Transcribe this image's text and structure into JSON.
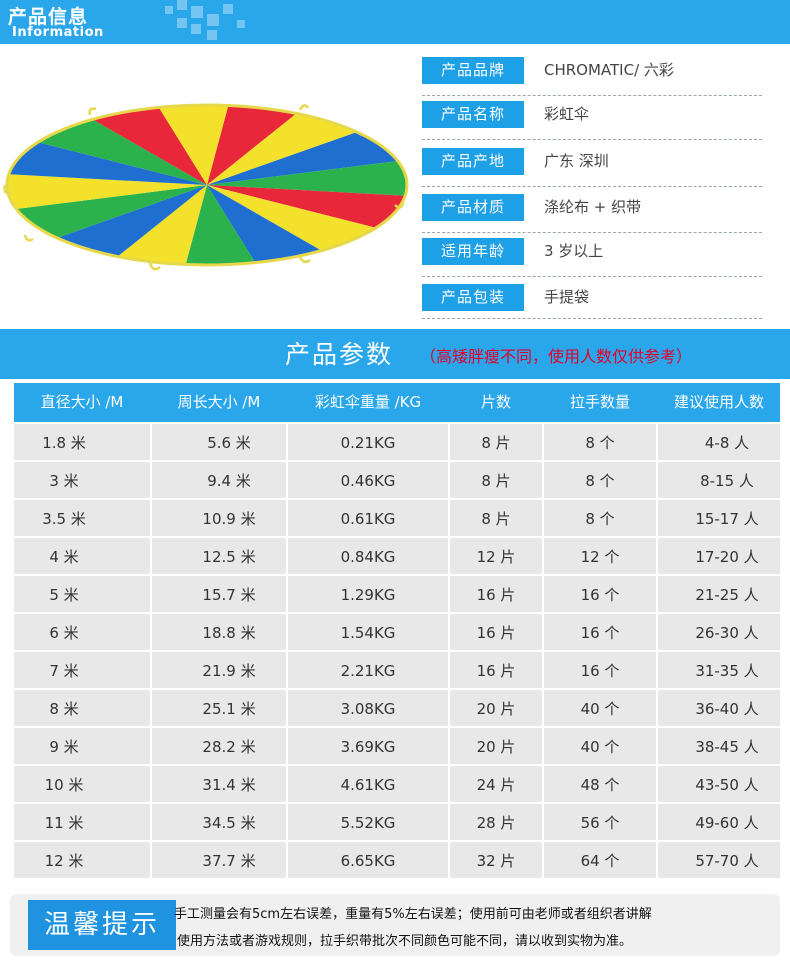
{
  "header": {
    "title": "产品信息",
    "subtitle": "Information",
    "bar_color": "#2aa6ea"
  },
  "image": {
    "alt": "rainbow parachute",
    "colors": [
      "#e8283a",
      "#1f6fd0",
      "#f3e12c",
      "#2bb24c",
      "#1aa8e8"
    ]
  },
  "info": [
    {
      "label": "产品品牌",
      "value": "CHROMATIC/ 六彩"
    },
    {
      "label": "产品名称",
      "value": "彩虹伞"
    },
    {
      "label": "产品产地",
      "value": "广东  深圳"
    },
    {
      "label": "产品材质",
      "value": "涤纶布 + 织带"
    },
    {
      "label": "适用年龄",
      "value": "3 岁以上"
    },
    {
      "label": "产品包装",
      "value": "手提袋"
    }
  ],
  "params": {
    "heading": "产品参数",
    "note": "（高矮胖瘦不同，使用人数仅供参考）",
    "columns": [
      "直径大小 /M",
      "周长大小 /M",
      "彩虹伞重量 /KG",
      "片数",
      "拉手数量",
      "建议使用人数"
    ],
    "rows": [
      [
        "1.8 米",
        "5.6 米",
        "0.21KG",
        "8 片",
        "8 个",
        "4-8 人"
      ],
      [
        "3 米",
        "9.4 米",
        "0.46KG",
        "8 片",
        "8 个",
        "8-15 人"
      ],
      [
        "3.5 米",
        "10.9 米",
        "0.61KG",
        "8 片",
        "8 个",
        "15-17 人"
      ],
      [
        "4 米",
        "12.5 米",
        "0.84KG",
        "12 片",
        "12 个",
        "17-20 人"
      ],
      [
        "5 米",
        "15.7 米",
        "1.29KG",
        "16 片",
        "16 个",
        "21-25 人"
      ],
      [
        "6 米",
        "18.8 米",
        "1.54KG",
        "16 片",
        "16 个",
        "26-30 人"
      ],
      [
        "7 米",
        "21.9 米",
        "2.21KG",
        "16 片",
        "16 个",
        "31-35 人"
      ],
      [
        "8 米",
        "25.1 米",
        "3.08KG",
        "20 片",
        "40 个",
        "36-40 人"
      ],
      [
        "9 米",
        "28.2 米",
        "3.69KG",
        "20 片",
        "40 个",
        "38-45 人"
      ],
      [
        "10 米",
        "31.4 米",
        "4.61KG",
        "24 片",
        "48 个",
        "43-50 人"
      ],
      [
        "11 米",
        "34.5 米",
        "5.52KG",
        "28 片",
        "56 个",
        "49-60 人"
      ],
      [
        "12 米",
        "37.7 米",
        "6.65KG",
        "32 片",
        "64 个",
        "57-70 人"
      ]
    ]
  },
  "tips": {
    "badge": "温馨提示",
    "line1": "手工测量会有5cm左右误差，重量有5%左右误差；使用前可由老师或者组织者讲解",
    "line2": "使用方法或者游戏规则，拉手织带批次不同颜色可能不同，请以收到实物为准。"
  }
}
